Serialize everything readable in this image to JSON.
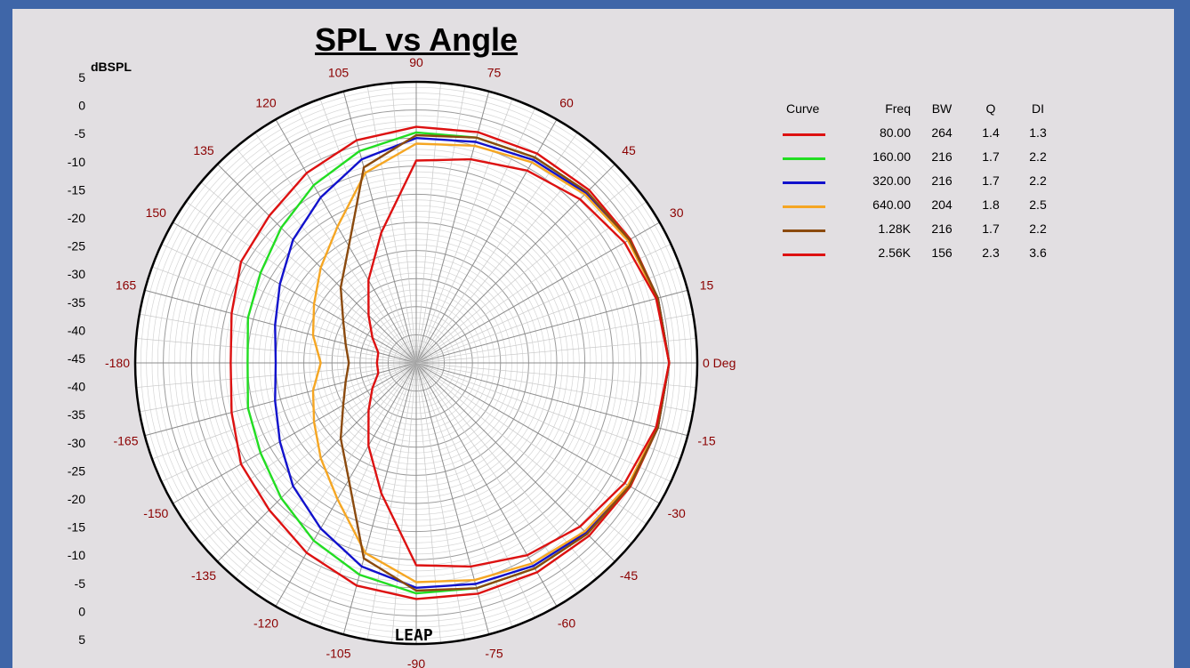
{
  "chart_data": {
    "type": "polar",
    "title": "SPL vs Angle",
    "radial_label": "dBSPL",
    "radial_range": [
      -45,
      5
    ],
    "radial_tick_labels": [
      "5",
      "0",
      "-5",
      "-10",
      "-15",
      "-20",
      "-25",
      "-30",
      "-35",
      "-40",
      "-45",
      "-40",
      "-35",
      "-30",
      "-25",
      "-20",
      "-15",
      "-10",
      "-5",
      "0",
      "5"
    ],
    "angle_tick_labels": [
      {
        "angle": 0,
        "label": "0 Deg"
      },
      {
        "angle": 15,
        "label": "15"
      },
      {
        "angle": 30,
        "label": "30"
      },
      {
        "angle": 45,
        "label": "45"
      },
      {
        "angle": 60,
        "label": "60"
      },
      {
        "angle": 75,
        "label": "75"
      },
      {
        "angle": 90,
        "label": "90"
      },
      {
        "angle": 105,
        "label": "105"
      },
      {
        "angle": 120,
        "label": "120"
      },
      {
        "angle": 135,
        "label": "135"
      },
      {
        "angle": 150,
        "label": "150"
      },
      {
        "angle": 165,
        "label": "165"
      },
      {
        "angle": 180,
        "label": "-180"
      },
      {
        "angle": -165,
        "label": "-165"
      },
      {
        "angle": -150,
        "label": "-150"
      },
      {
        "angle": -135,
        "label": "-135"
      },
      {
        "angle": -120,
        "label": "-120"
      },
      {
        "angle": -105,
        "label": "-105"
      },
      {
        "angle": -90,
        "label": "-90"
      },
      {
        "angle": -75,
        "label": "-75"
      },
      {
        "angle": -60,
        "label": "-60"
      },
      {
        "angle": -45,
        "label": "-45"
      },
      {
        "angle": -30,
        "label": "-30"
      },
      {
        "angle": -15,
        "label": "-15"
      }
    ],
    "angles": [
      0,
      15,
      30,
      45,
      60,
      75,
      90,
      105,
      120,
      135,
      150,
      165,
      180
    ],
    "series": [
      {
        "color": "#dd1111",
        "values": [
          0,
          -0.5,
          -1,
          -1.5,
          -2,
          -2.5,
          -3,
          -4,
          -6,
          -8,
          -9,
          -11,
          -12
        ]
      },
      {
        "color": "#22dd22",
        "values": [
          0,
          -0.5,
          -1.2,
          -2,
          -2.8,
          -3.5,
          -4,
          -6,
          -8.5,
          -11,
          -13,
          -14,
          -15
        ]
      },
      {
        "color": "#1111cc",
        "values": [
          0,
          -0.5,
          -1.3,
          -2.3,
          -3.3,
          -4.3,
          -5,
          -7.5,
          -11,
          -14,
          -17,
          -19,
          -20
        ]
      },
      {
        "color": "#f5a623",
        "values": [
          0,
          -0.6,
          -1.5,
          -2.6,
          -3.8,
          -5,
          -6,
          -10,
          -17,
          -21,
          -24,
          -26,
          -28
        ]
      },
      {
        "color": "#8b4a0e",
        "values": [
          0,
          -0.5,
          -1.2,
          -2,
          -2.8,
          -3.5,
          -4.5,
          -9,
          -21,
          -26,
          -30,
          -32,
          -33
        ]
      },
      {
        "color": "#dd1111",
        "values": [
          0,
          -0.8,
          -2.2,
          -3.8,
          -5.5,
          -7.5,
          -9,
          -21,
          -28,
          -33,
          -36,
          -38,
          -38
        ]
      }
    ]
  },
  "legend": {
    "headers": {
      "curve": "Curve",
      "freq": "Freq",
      "bw": "BW",
      "q": "Q",
      "di": "DI"
    },
    "rows": [
      {
        "color": "#dd1111",
        "freq": "80.00",
        "bw": "264",
        "q": "1.4",
        "di": "1.3"
      },
      {
        "color": "#22dd22",
        "freq": "160.00",
        "bw": "216",
        "q": "1.7",
        "di": "2.2"
      },
      {
        "color": "#1111cc",
        "freq": "320.00",
        "bw": "216",
        "q": "1.7",
        "di": "2.2"
      },
      {
        "color": "#f5a623",
        "freq": "640.00",
        "bw": "204",
        "q": "1.8",
        "di": "2.5"
      },
      {
        "color": "#8b4a0e",
        "freq": "1.28K",
        "bw": "216",
        "q": "1.7",
        "di": "2.2"
      },
      {
        "color": "#dd1111",
        "freq": "2.56K",
        "bw": "156",
        "q": "2.3",
        "di": "3.6"
      }
    ]
  },
  "watermark": "LEAP"
}
